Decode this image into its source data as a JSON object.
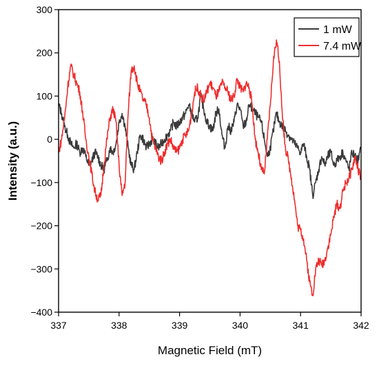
{
  "chart_data": {
    "type": "line",
    "title": "",
    "xlabel": "Magnetic Field (mT)",
    "ylabel": "Intensity (a.u.)",
    "xlim": [
      337,
      342
    ],
    "ylim": [
      -400,
      300
    ],
    "x_ticks": [
      337,
      338,
      339,
      340,
      341,
      342
    ],
    "y_ticks": [
      -400,
      -300,
      -200,
      -100,
      0,
      100,
      200,
      300
    ],
    "x_tick_labels": [
      "337",
      "338",
      "339",
      "340",
      "341",
      "342"
    ],
    "y_tick_labels": [
      "−400",
      "−300",
      "−200",
      "−100",
      "0",
      "100",
      "200",
      "300"
    ],
    "grid": false,
    "legend_position": "top-right",
    "series": [
      {
        "name": "1 mW",
        "color": "#3a3a3a",
        "x": [
          337.0,
          337.05,
          337.1,
          337.15,
          337.2,
          337.25,
          337.3,
          337.35,
          337.4,
          337.45,
          337.5,
          337.55,
          337.6,
          337.65,
          337.7,
          337.75,
          337.8,
          337.85,
          337.9,
          337.95,
          338.0,
          338.05,
          338.1,
          338.15,
          338.2,
          338.25,
          338.3,
          338.35,
          338.4,
          338.45,
          338.5,
          338.55,
          338.6,
          338.65,
          338.7,
          338.75,
          338.8,
          338.85,
          338.9,
          338.95,
          339.0,
          339.05,
          339.1,
          339.15,
          339.2,
          339.25,
          339.3,
          339.35,
          339.4,
          339.45,
          339.5,
          339.55,
          339.6,
          339.65,
          339.7,
          339.75,
          339.8,
          339.85,
          339.9,
          339.95,
          340.0,
          340.05,
          340.1,
          340.15,
          340.2,
          340.25,
          340.3,
          340.35,
          340.4,
          340.45,
          340.5,
          340.55,
          340.6,
          340.65,
          340.7,
          340.75,
          340.8,
          340.85,
          340.9,
          340.95,
          341.0,
          341.05,
          341.1,
          341.15,
          341.2,
          341.25,
          341.3,
          341.35,
          341.4,
          341.45,
          341.5,
          341.55,
          341.6,
          341.65,
          341.7,
          341.75,
          341.8,
          341.85,
          341.9,
          341.95,
          342.0
        ],
        "y": [
          80,
          60,
          30,
          10,
          -10,
          -20,
          -10,
          -30,
          -20,
          -40,
          -60,
          -50,
          -30,
          -40,
          -60,
          -70,
          -50,
          -20,
          -30,
          -10,
          40,
          60,
          30,
          -20,
          -60,
          -70,
          -30,
          10,
          0,
          -20,
          -10,
          0,
          -10,
          -20,
          -10,
          0,
          10,
          20,
          40,
          30,
          40,
          50,
          60,
          80,
          60,
          40,
          50,
          100,
          70,
          40,
          30,
          20,
          60,
          70,
          10,
          -20,
          30,
          20,
          40,
          80,
          70,
          30,
          40,
          80,
          70,
          60,
          50,
          40,
          0,
          -40,
          -20,
          20,
          60,
          40,
          30,
          20,
          10,
          0,
          -10,
          -20,
          -30,
          -10,
          -40,
          -70,
          -130,
          -100,
          -70,
          -40,
          -60,
          -40,
          -30,
          -60,
          -50,
          -40,
          -30,
          -50,
          -70,
          -30,
          -40,
          -50,
          -20
        ]
      },
      {
        "name": "7.4 mW",
        "color": "#ee2d2d",
        "x": [
          337.0,
          337.05,
          337.1,
          337.15,
          337.2,
          337.25,
          337.3,
          337.35,
          337.4,
          337.45,
          337.5,
          337.55,
          337.6,
          337.65,
          337.7,
          337.75,
          337.8,
          337.85,
          337.9,
          337.95,
          338.0,
          338.05,
          338.1,
          338.15,
          338.2,
          338.25,
          338.3,
          338.35,
          338.4,
          338.45,
          338.5,
          338.55,
          338.6,
          338.65,
          338.7,
          338.75,
          338.8,
          338.85,
          338.9,
          338.95,
          339.0,
          339.05,
          339.1,
          339.15,
          339.2,
          339.25,
          339.3,
          339.35,
          339.4,
          339.45,
          339.5,
          339.55,
          339.6,
          339.65,
          339.7,
          339.75,
          339.8,
          339.85,
          339.9,
          339.95,
          340.0,
          340.05,
          340.1,
          340.15,
          340.2,
          340.25,
          340.3,
          340.35,
          340.4,
          340.45,
          340.5,
          340.55,
          340.6,
          340.65,
          340.7,
          340.75,
          340.8,
          340.85,
          340.9,
          340.95,
          341.0,
          341.05,
          341.1,
          341.15,
          341.2,
          341.25,
          341.3,
          341.35,
          341.4,
          341.45,
          341.5,
          341.55,
          341.6,
          341.65,
          341.7,
          341.75,
          341.8,
          341.85,
          341.9,
          341.95,
          342.0
        ],
        "y": [
          -30,
          0,
          50,
          120,
          170,
          150,
          130,
          110,
          60,
          0,
          -40,
          -80,
          -120,
          -140,
          -130,
          -60,
          0,
          50,
          70,
          40,
          -60,
          -130,
          -100,
          60,
          160,
          170,
          130,
          110,
          90,
          80,
          50,
          0,
          -20,
          -40,
          -50,
          -30,
          -10,
          0,
          -20,
          -30,
          -20,
          0,
          10,
          20,
          60,
          110,
          120,
          100,
          90,
          110,
          130,
          120,
          100,
          110,
          130,
          120,
          110,
          90,
          100,
          140,
          120,
          110,
          130,
          120,
          80,
          0,
          -30,
          -70,
          -80,
          0,
          80,
          180,
          230,
          180,
          50,
          -20,
          -50,
          -90,
          -140,
          -200,
          -210,
          -230,
          -280,
          -330,
          -360,
          -300,
          -280,
          -290,
          -280,
          -250,
          -220,
          -180,
          -150,
          -160,
          -120,
          -100,
          -90,
          -70,
          -40,
          -70,
          -90
        ]
      }
    ]
  }
}
